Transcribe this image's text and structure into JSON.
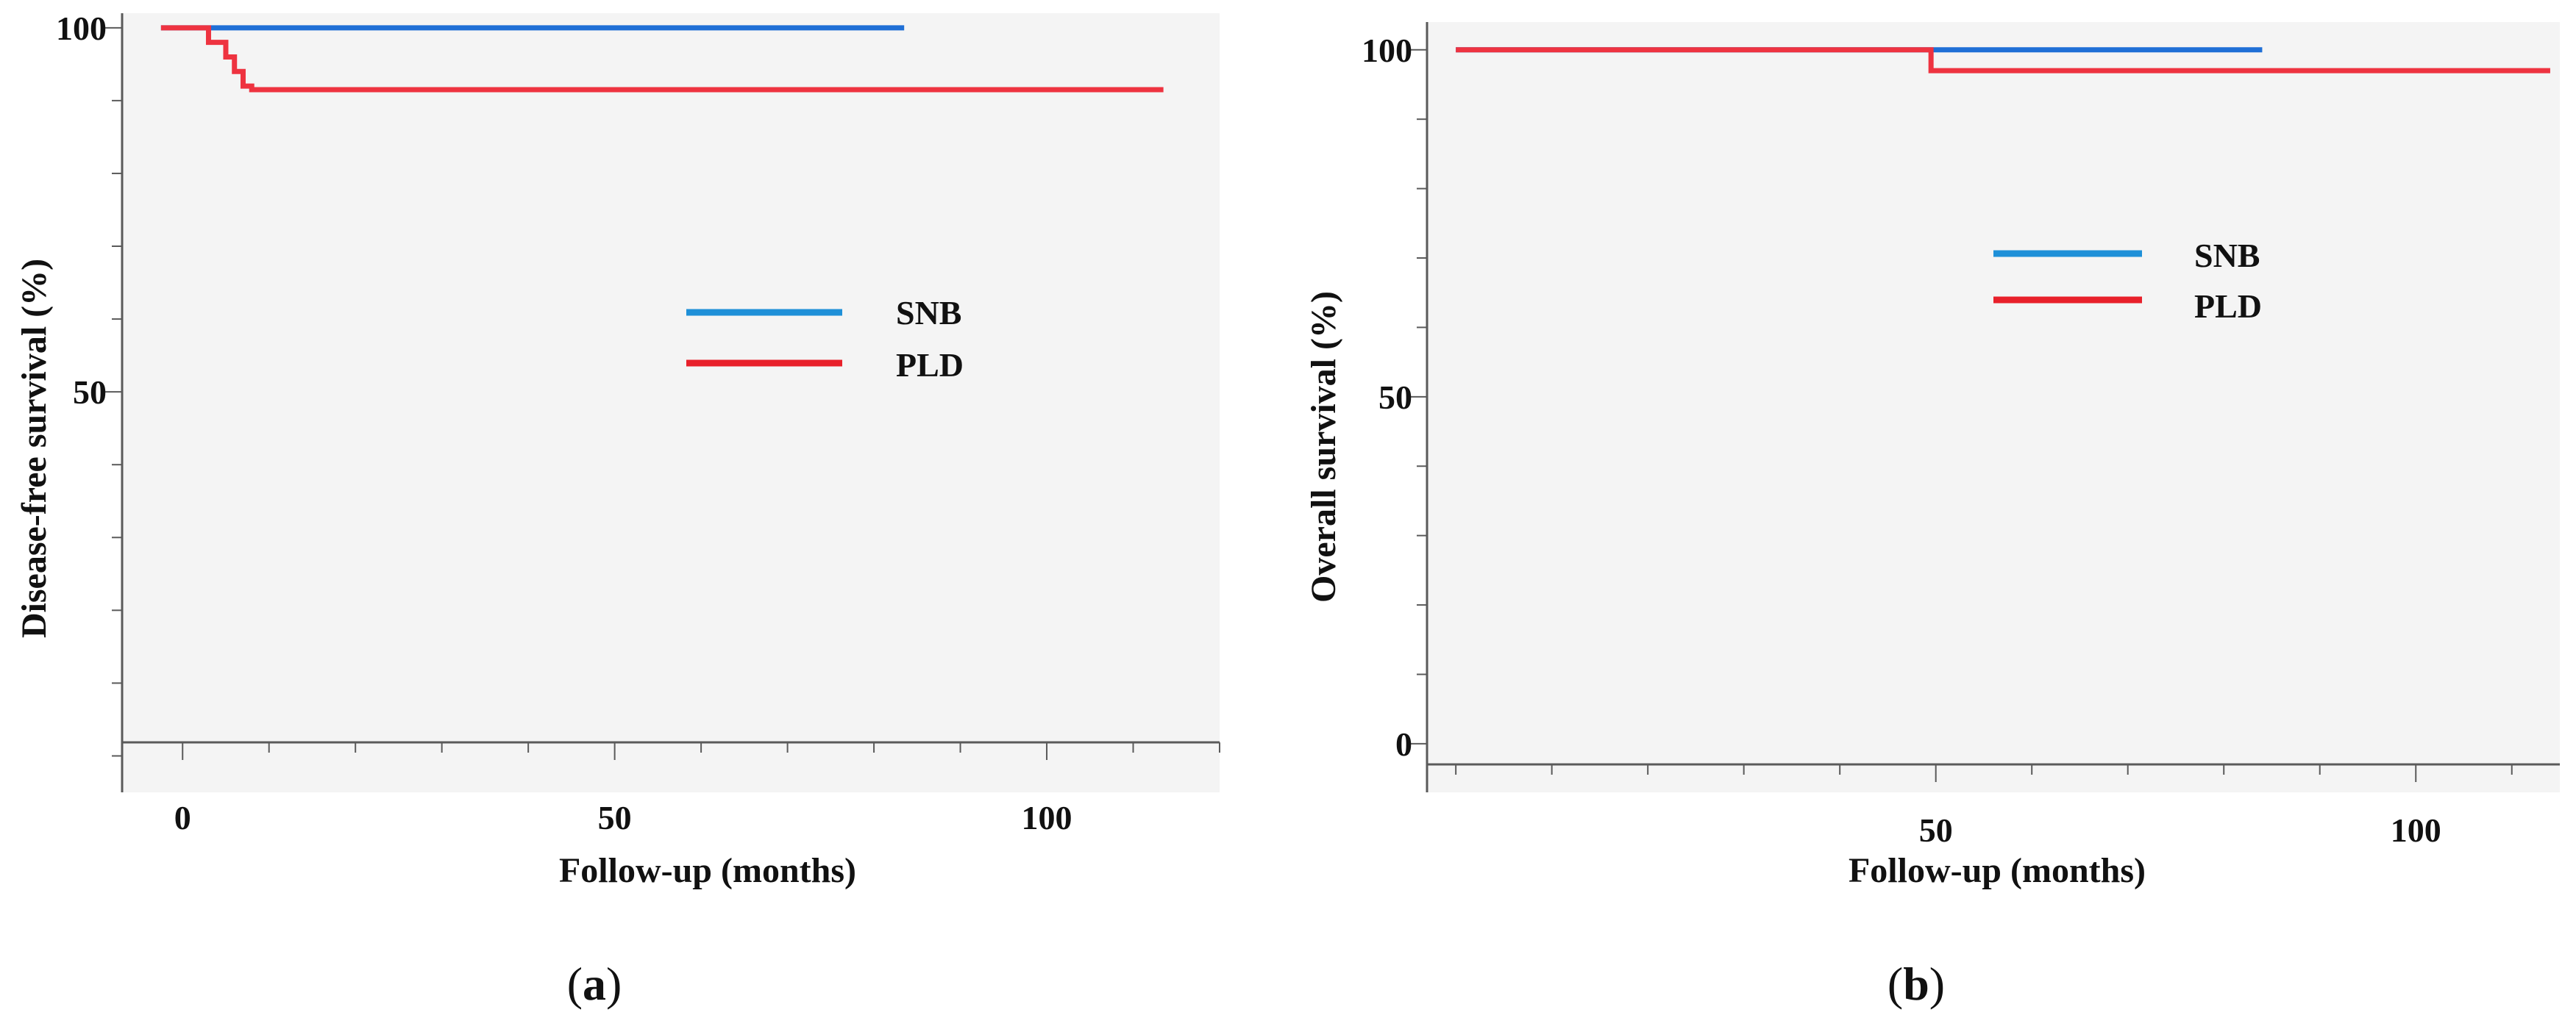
{
  "colors": {
    "SNB": "#1f6fd6",
    "PLD": "#ee3340",
    "SNB_legend": "#1e90d8",
    "PLD_legend": "#e8202a"
  },
  "chart_data": [
    {
      "id": "a",
      "type": "line",
      "step": true,
      "panel_label": {
        "open": "(",
        "letter": "a",
        "close": ")"
      },
      "xlabel": "Follow-up (months)",
      "ylabel": "Disease-free survival (%)",
      "xlim": [
        -7,
        120
      ],
      "ylim": [
        -5,
        102
      ],
      "x_ticks": [
        0,
        50,
        100
      ],
      "x_tick_labels": [
        "0",
        "50",
        "100"
      ],
      "y_ticks": [
        50,
        100
      ],
      "y_tick_labels": [
        "50",
        "100"
      ],
      "x_minor_step": 10,
      "y_minor_step": 10,
      "legend": {
        "placement": "center-right",
        "entries": [
          "SNB",
          "PLD"
        ]
      },
      "series": [
        {
          "name": "SNB",
          "x": [
            -2.5,
            83.5
          ],
          "y": [
            100,
            100
          ]
        },
        {
          "name": "PLD",
          "x": [
            -2.5,
            3,
            5,
            6,
            7,
            8,
            113.5
          ],
          "y": [
            100,
            98,
            96,
            94,
            92,
            91.5,
            91.5
          ]
        }
      ]
    },
    {
      "id": "b",
      "type": "line",
      "step": true,
      "panel_label": {
        "open": "(",
        "letter": "b",
        "close": ")"
      },
      "xlabel": "Follow-up (months)",
      "ylabel": "Overall survival (%)",
      "xlim": [
        -3,
        115
      ],
      "ylim": [
        -7,
        104
      ],
      "x_ticks": [
        50,
        100
      ],
      "x_tick_labels": [
        "50",
        "100"
      ],
      "y_ticks": [
        0,
        50,
        100
      ],
      "y_tick_labels": [
        "0",
        "50",
        "100"
      ],
      "x_minor_step": 10,
      "y_minor_step": 10,
      "legend": {
        "placement": "top-right",
        "entries": [
          "SNB",
          "PLD"
        ]
      },
      "series": [
        {
          "name": "SNB",
          "x": [
            0,
            84
          ],
          "y": [
            100,
            100
          ]
        },
        {
          "name": "PLD",
          "x": [
            0,
            49.5,
            114
          ],
          "y": [
            100,
            97,
            97
          ]
        }
      ]
    }
  ]
}
